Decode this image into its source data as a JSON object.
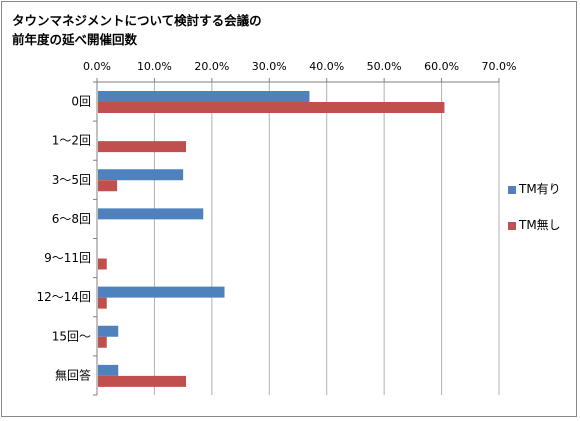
{
  "chart_data": {
    "type": "bar",
    "orientation": "horizontal",
    "title_lines": [
      "タウンマネジメントについて検討する会議の",
      "前年度の延べ開催回数"
    ],
    "categories": [
      "0回",
      "1～2回",
      "3～5回",
      "6～8回",
      "9～11回",
      "12～14回",
      "15回～",
      "無回答"
    ],
    "series": [
      {
        "name": "TM有り",
        "color": "#4F81BD",
        "values": [
          0.37,
          0.0,
          0.15,
          0.185,
          0.0,
          0.222,
          0.037,
          0.037
        ]
      },
      {
        "name": "TM無し",
        "color": "#C0504D",
        "values": [
          0.605,
          0.155,
          0.035,
          0.0,
          0.017,
          0.017,
          0.017,
          0.155
        ]
      }
    ],
    "xlim": [
      0,
      0.7
    ],
    "x_ticks": [
      "0.0%",
      "10.0%",
      "20.0%",
      "30.0%",
      "40.0%",
      "50.0%",
      "60.0%",
      "70.0%"
    ],
    "x_axis_position": "top",
    "grid": true,
    "legend_position": "right"
  }
}
